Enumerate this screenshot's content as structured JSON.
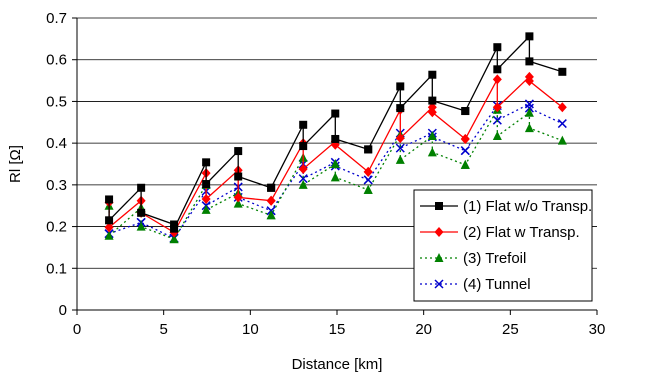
{
  "chart_data": {
    "type": "line",
    "xlabel": "Distance [km]",
    "ylabel": "Rl [Ω]",
    "xlim": [
      0,
      30
    ],
    "ylim": [
      0,
      0.7
    ],
    "xticks": [
      0,
      5,
      10,
      15,
      20,
      25,
      30
    ],
    "yticks": [
      0,
      0.1,
      0.2,
      0.3,
      0.4,
      0.5,
      0.6,
      0.7
    ],
    "xtick_labels": [
      "0",
      "5",
      "10",
      "15",
      "20",
      "25",
      "30"
    ],
    "ytick_labels": [
      "0",
      "0.1",
      "0.2",
      "0.3",
      "0.4",
      "0.5",
      "0.6",
      "0.7"
    ],
    "grid": "horizontal",
    "legend_position": "bottom-right",
    "x": [
      1.85,
      1.85,
      3.7,
      3.7,
      5.6,
      5.6,
      7.45,
      7.45,
      9.3,
      9.3,
      11.2,
      11.2,
      13.05,
      13.05,
      14.9,
      14.9,
      16.8,
      16.8,
      18.65,
      18.65,
      20.5,
      20.5,
      22.4,
      22.4,
      24.25,
      24.25,
      26.1,
      26.1,
      28.0
    ],
    "series": [
      {
        "name": "(1) Flat w/o Transp.",
        "color": "#000000",
        "marker": "square",
        "dash": "solid",
        "values": [
          0.265,
          0.215,
          0.293,
          0.233,
          0.205,
          0.195,
          0.354,
          0.302,
          0.381,
          0.32,
          0.293,
          0.293,
          0.444,
          0.393,
          0.471,
          0.41,
          0.385,
          0.385,
          0.536,
          0.484,
          0.564,
          0.502,
          0.477,
          0.477,
          0.63,
          0.577,
          0.656,
          0.596,
          0.571
        ]
      },
      {
        "name": "(2) Flat w Transp.",
        "color": "#ff0000",
        "marker": "diamond",
        "dash": "solid",
        "values": [
          0.258,
          0.198,
          0.262,
          0.233,
          0.186,
          0.186,
          0.328,
          0.266,
          0.335,
          0.27,
          0.262,
          0.262,
          0.4,
          0.338,
          0.404,
          0.396,
          0.331,
          0.331,
          0.48,
          0.412,
          0.486,
          0.474,
          0.41,
          0.41,
          0.553,
          0.486,
          0.559,
          0.549,
          0.486
        ]
      },
      {
        "name": "(3) Trefoil",
        "color": "#008000",
        "marker": "triangle",
        "dash": "dot",
        "values": [
          0.25,
          0.178,
          0.245,
          0.2,
          0.17,
          0.17,
          0.3,
          0.24,
          0.28,
          0.255,
          0.227,
          0.227,
          0.365,
          0.3,
          0.35,
          0.318,
          0.288,
          0.288,
          0.42,
          0.36,
          0.417,
          0.378,
          0.348,
          0.348,
          0.48,
          0.417,
          0.473,
          0.436,
          0.406
        ]
      },
      {
        "name": "(4) Tunnel",
        "color": "#0000cc",
        "marker": "x",
        "dash": "dot",
        "values": [
          0.183,
          0.183,
          0.21,
          0.21,
          0.172,
          0.172,
          0.285,
          0.25,
          0.295,
          0.27,
          0.238,
          0.238,
          0.35,
          0.315,
          0.354,
          0.345,
          0.312,
          0.312,
          0.424,
          0.388,
          0.424,
          0.415,
          0.382,
          0.382,
          0.49,
          0.455,
          0.494,
          0.484,
          0.447
        ]
      }
    ]
  }
}
